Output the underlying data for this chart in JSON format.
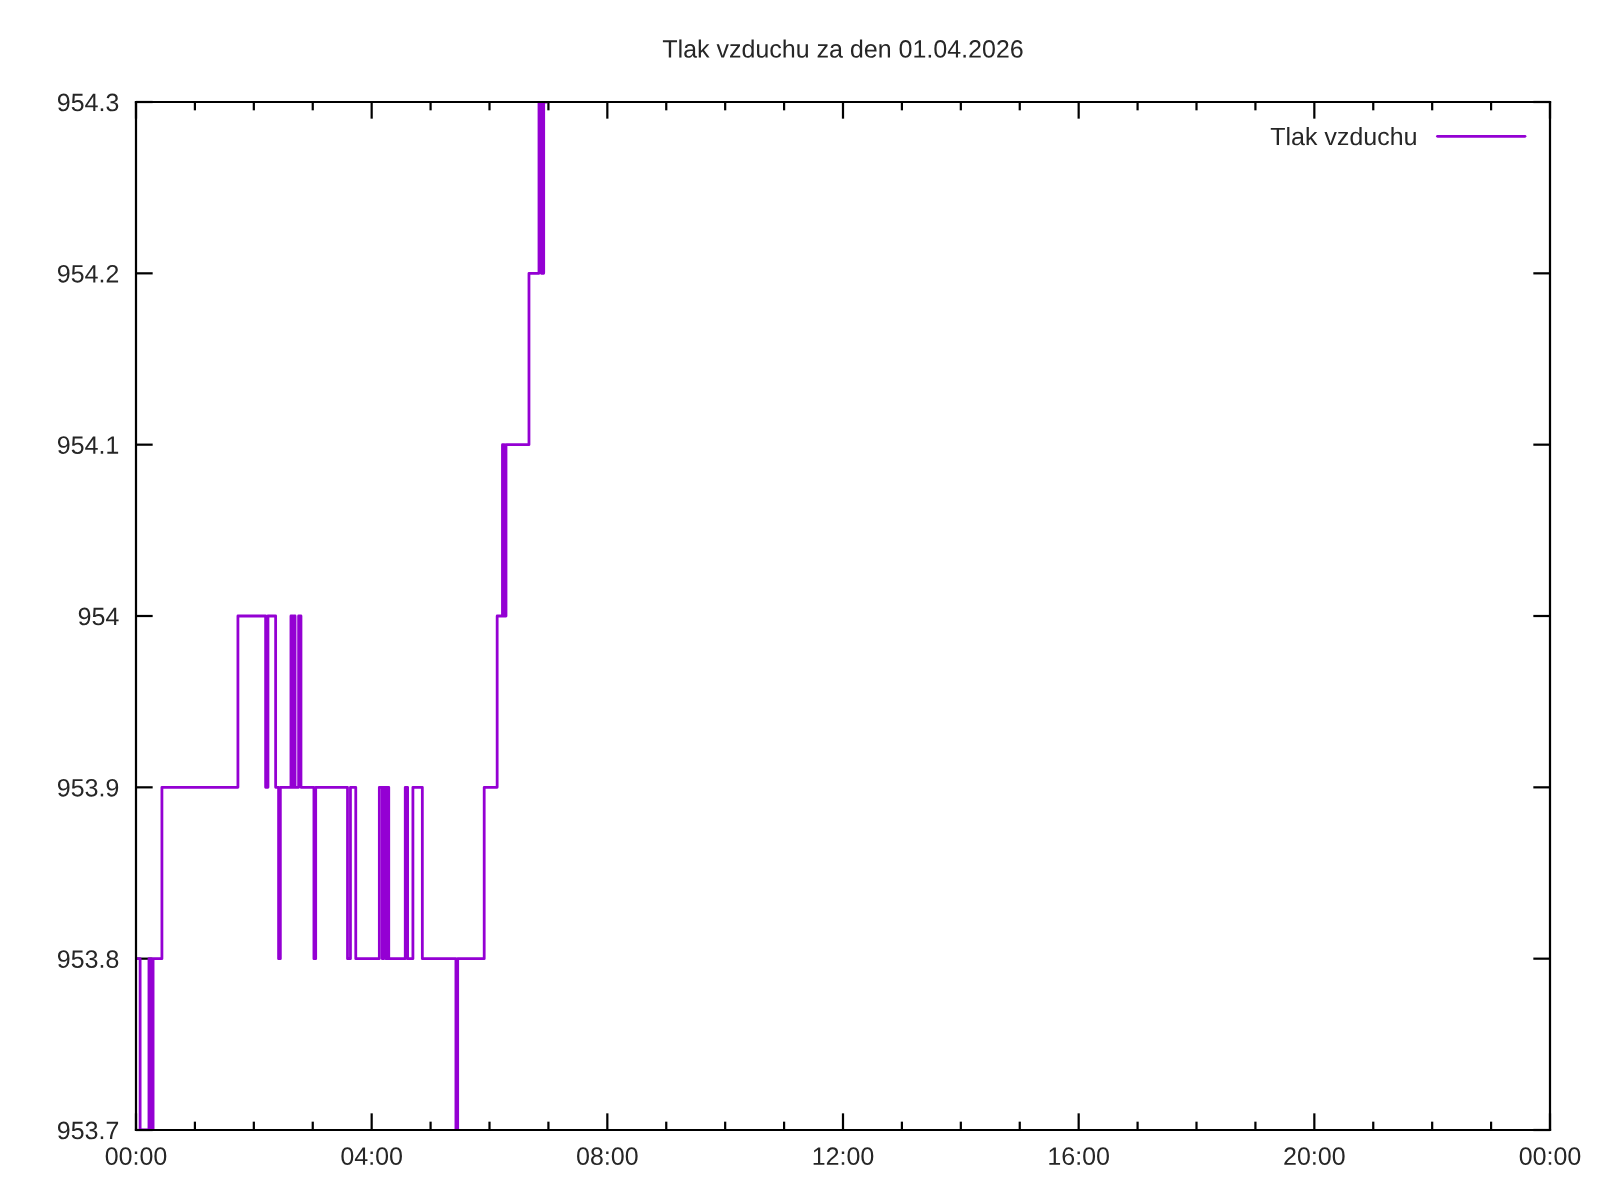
{
  "chart_data": {
    "type": "step",
    "title": "Tlak vzduchu za den 01.04.2026",
    "series": [
      {
        "name": "Tlak vzduchu",
        "color": "#9400d3",
        "line_style": "solid",
        "x": [
          0.0,
          0.07,
          0.22,
          0.26,
          0.29,
          0.44,
          1.73,
          2.2,
          2.24,
          2.37,
          2.42,
          2.45,
          2.63,
          2.66,
          2.68,
          2.7,
          2.76,
          2.8,
          3.02,
          3.05,
          3.59,
          3.64,
          3.73,
          4.13,
          4.18,
          4.2,
          4.24,
          4.26,
          4.29,
          4.57,
          4.61,
          4.7,
          4.86,
          5.43,
          5.46,
          5.91,
          6.13,
          6.22,
          6.25,
          6.28,
          6.67,
          6.84,
          6.88,
          6.92,
          6.97
        ],
        "values": [
          953.8,
          953.7,
          953.8,
          953.7,
          953.8,
          953.9,
          954.0,
          953.9,
          954.0,
          953.9,
          953.8,
          953.9,
          954.0,
          953.9,
          954.0,
          953.9,
          954.0,
          953.9,
          953.8,
          953.9,
          953.8,
          953.9,
          953.8,
          953.9,
          953.8,
          953.9,
          953.8,
          953.9,
          953.8,
          953.9,
          953.8,
          953.9,
          953.8,
          953.7,
          953.8,
          953.9,
          954.0,
          954.1,
          954.0,
          954.1,
          954.2,
          954.3,
          954.2,
          954.3,
          954.3
        ]
      }
    ],
    "xlim": [
      0,
      24
    ],
    "xticks": [
      {
        "value": 0,
        "label": "00:00"
      },
      {
        "value": 1,
        "label": null
      },
      {
        "value": 2,
        "label": null
      },
      {
        "value": 3,
        "label": null
      },
      {
        "value": 4,
        "label": "04:00"
      },
      {
        "value": 5,
        "label": null
      },
      {
        "value": 6,
        "label": null
      },
      {
        "value": 7,
        "label": null
      },
      {
        "value": 8,
        "label": "08:00"
      },
      {
        "value": 9,
        "label": null
      },
      {
        "value": 10,
        "label": null
      },
      {
        "value": 11,
        "label": null
      },
      {
        "value": 12,
        "label": "12:00"
      },
      {
        "value": 13,
        "label": null
      },
      {
        "value": 14,
        "label": null
      },
      {
        "value": 15,
        "label": null
      },
      {
        "value": 16,
        "label": "16:00"
      },
      {
        "value": 17,
        "label": null
      },
      {
        "value": 18,
        "label": null
      },
      {
        "value": 19,
        "label": null
      },
      {
        "value": 20,
        "label": "20:00"
      },
      {
        "value": 21,
        "label": null
      },
      {
        "value": 22,
        "label": null
      },
      {
        "value": 23,
        "label": null
      },
      {
        "value": 24,
        "label": "00:00"
      }
    ],
    "ylim": [
      953.7,
      954.3
    ],
    "yticks": [
      953.7,
      953.8,
      953.9,
      954,
      954.1,
      954.2,
      954.3
    ],
    "legend": "top right"
  }
}
